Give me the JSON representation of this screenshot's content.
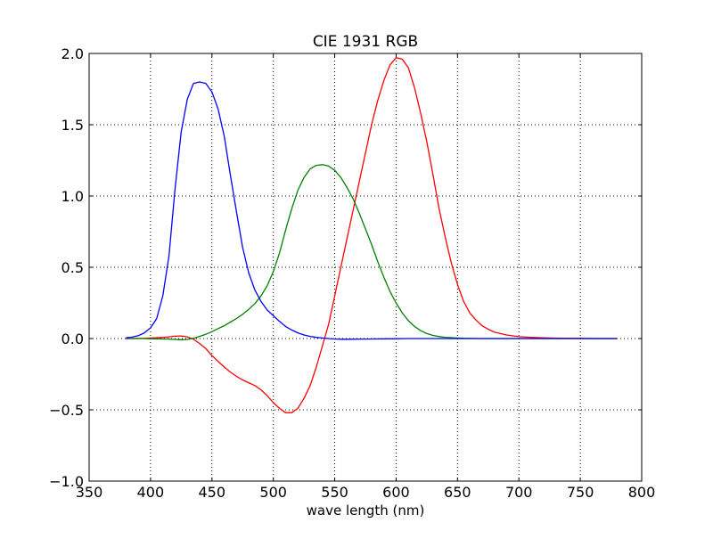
{
  "chart_data": {
    "type": "line",
    "title": "CIE 1931 RGB",
    "xlabel": "wave length (nm)",
    "ylabel": "",
    "xlim": [
      350,
      800
    ],
    "ylim": [
      -1.0,
      2.0
    ],
    "xticks": [
      350,
      400,
      450,
      500,
      550,
      600,
      650,
      700,
      750,
      800
    ],
    "yticks": [
      -1.0,
      -0.5,
      0.0,
      0.5,
      1.0,
      1.5,
      2.0
    ],
    "xtick_labels": [
      "350",
      "400",
      "450",
      "500",
      "550",
      "600",
      "650",
      "700",
      "750",
      "800"
    ],
    "ytick_labels": [
      "−1.0",
      "−0.5",
      "0.0",
      "0.5",
      "1.0",
      "1.5",
      "2.0"
    ],
    "grid": true,
    "grid_style": "dotted",
    "legend": "none",
    "series": [
      {
        "color": "#ff0000",
        "x": [
          380,
          385,
          390,
          395,
          400,
          405,
          410,
          415,
          420,
          425,
          430,
          435,
          440,
          445,
          450,
          455,
          460,
          465,
          470,
          475,
          480,
          485,
          490,
          495,
          500,
          505,
          510,
          515,
          520,
          525,
          530,
          535,
          540,
          545,
          550,
          555,
          560,
          565,
          570,
          575,
          580,
          585,
          590,
          595,
          600,
          605,
          610,
          615,
          620,
          625,
          630,
          635,
          640,
          645,
          650,
          655,
          660,
          665,
          670,
          675,
          680,
          690,
          700,
          710,
          720,
          730,
          740,
          750,
          760,
          770,
          780
        ],
        "y": [
          0.0,
          0.0,
          0.001,
          0.002,
          0.004,
          0.006,
          0.008,
          0.012,
          0.016,
          0.018,
          0.012,
          -0.005,
          -0.035,
          -0.07,
          -0.12,
          -0.16,
          -0.2,
          -0.235,
          -0.265,
          -0.29,
          -0.31,
          -0.33,
          -0.36,
          -0.4,
          -0.45,
          -0.49,
          -0.52,
          -0.52,
          -0.49,
          -0.42,
          -0.33,
          -0.2,
          -0.05,
          0.1,
          0.3,
          0.5,
          0.7,
          0.9,
          1.1,
          1.3,
          1.5,
          1.67,
          1.81,
          1.92,
          1.97,
          1.96,
          1.9,
          1.76,
          1.58,
          1.38,
          1.15,
          0.91,
          0.71,
          0.53,
          0.38,
          0.26,
          0.18,
          0.13,
          0.09,
          0.065,
          0.045,
          0.025,
          0.013,
          0.008,
          0.005,
          0.003,
          0.002,
          0.001,
          0.0,
          0.0,
          0.0
        ]
      },
      {
        "color": "#008000",
        "x": [
          380,
          385,
          390,
          395,
          400,
          405,
          410,
          415,
          420,
          425,
          430,
          435,
          440,
          445,
          450,
          455,
          460,
          465,
          470,
          475,
          480,
          485,
          490,
          495,
          500,
          505,
          510,
          515,
          520,
          525,
          530,
          535,
          540,
          545,
          550,
          555,
          560,
          565,
          570,
          575,
          580,
          585,
          590,
          595,
          600,
          605,
          610,
          615,
          620,
          625,
          630,
          635,
          640,
          645,
          650,
          655,
          660,
          665,
          670,
          675,
          680,
          690,
          700,
          710,
          720,
          730,
          740,
          750,
          760,
          770,
          780
        ],
        "y": [
          0.0,
          0.0,
          0.0,
          0.0,
          -0.001,
          -0.002,
          -0.003,
          -0.004,
          -0.006,
          -0.008,
          -0.006,
          0.002,
          0.015,
          0.03,
          0.048,
          0.07,
          0.09,
          0.115,
          0.14,
          0.17,
          0.205,
          0.245,
          0.3,
          0.37,
          0.47,
          0.6,
          0.76,
          0.91,
          1.04,
          1.13,
          1.19,
          1.215,
          1.22,
          1.21,
          1.18,
          1.13,
          1.06,
          0.98,
          0.88,
          0.77,
          0.66,
          0.54,
          0.43,
          0.33,
          0.25,
          0.18,
          0.125,
          0.085,
          0.055,
          0.035,
          0.022,
          0.014,
          0.009,
          0.006,
          0.004,
          0.002,
          0.001,
          0.0,
          0.0,
          0.0,
          0.0,
          0.0,
          0.0,
          0.0,
          0.0,
          0.0,
          0.0,
          0.0,
          0.0,
          0.0,
          0.0
        ]
      },
      {
        "color": "#0000ff",
        "x": [
          380,
          385,
          390,
          395,
          400,
          405,
          410,
          415,
          420,
          425,
          430,
          435,
          440,
          445,
          450,
          455,
          460,
          465,
          470,
          475,
          480,
          485,
          490,
          495,
          500,
          505,
          510,
          515,
          520,
          525,
          530,
          535,
          540,
          545,
          550,
          555,
          560,
          570,
          580,
          590,
          600,
          610,
          620,
          630,
          640,
          650,
          660,
          670,
          680,
          700,
          720,
          740,
          760,
          780
        ],
        "y": [
          0.005,
          0.01,
          0.02,
          0.04,
          0.075,
          0.14,
          0.3,
          0.58,
          1.05,
          1.45,
          1.68,
          1.79,
          1.8,
          1.79,
          1.73,
          1.61,
          1.42,
          1.15,
          0.89,
          0.64,
          0.46,
          0.34,
          0.26,
          0.2,
          0.16,
          0.12,
          0.085,
          0.06,
          0.04,
          0.025,
          0.015,
          0.008,
          0.004,
          0.0,
          -0.003,
          -0.005,
          -0.005,
          -0.004,
          -0.003,
          -0.002,
          -0.001,
          0.0,
          0.0,
          0.0,
          0.0,
          0.0,
          0.0,
          0.0,
          0.0,
          0.0,
          0.0,
          0.0,
          0.0,
          0.0
        ]
      }
    ]
  }
}
